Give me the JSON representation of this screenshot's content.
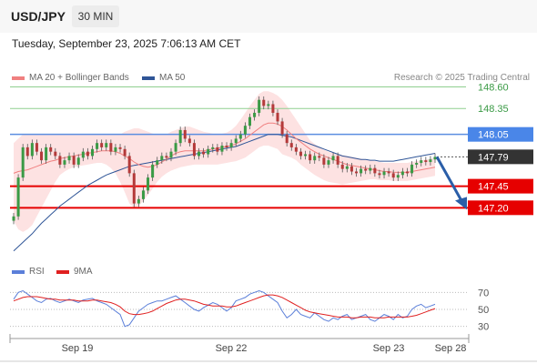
{
  "header": {
    "symbol": "USD/JPY",
    "timeframe": "30 MIN",
    "datetime": "Tuesday, September 23, 2025 7:06:13 AM CET"
  },
  "legend": {
    "ma20_label": "MA 20 + Bollinger Bands",
    "ma20_color": "#f08080",
    "ma50_label": "MA 50",
    "ma50_color": "#2f5597",
    "credit": "Research © 2025 Trading Central"
  },
  "rsi_legend": {
    "rsi_label": "RSI",
    "rsi_color": "#5b7fd9",
    "ma9_label": "9MA",
    "ma9_color": "#e02020"
  },
  "chart_data": [
    {
      "type": "candlestick",
      "ylim": [
        146.55,
        148.7
      ],
      "x_tick_labels": [
        "Sep 19",
        "Sep 22",
        "Sep 23",
        "Sep 28"
      ],
      "close": [
        147.1,
        147.55,
        147.9,
        147.8,
        147.95,
        147.85,
        147.75,
        147.9,
        147.85,
        147.8,
        147.7,
        147.75,
        147.8,
        147.7,
        147.78,
        147.85,
        147.8,
        147.88,
        147.95,
        147.9,
        147.95,
        147.85,
        147.9,
        147.88,
        147.8,
        147.6,
        147.25,
        147.3,
        147.4,
        147.55,
        147.7,
        147.75,
        147.8,
        147.78,
        147.85,
        147.95,
        148.1,
        148.0,
        147.95,
        147.8,
        147.85,
        147.82,
        147.88,
        147.9,
        147.85,
        147.92,
        147.9,
        147.95,
        148.0,
        148.05,
        148.15,
        148.25,
        148.3,
        148.45,
        148.38,
        148.4,
        148.3,
        148.2,
        148.05,
        147.95,
        147.9,
        147.85,
        147.8,
        147.82,
        147.75,
        147.8,
        147.78,
        147.7,
        147.75,
        147.8,
        147.7,
        147.65,
        147.68,
        147.62,
        147.6,
        147.65,
        147.63,
        147.66,
        147.6,
        147.58,
        147.62,
        147.6,
        147.55,
        147.58,
        147.62,
        147.6,
        147.7,
        147.72,
        147.75,
        147.73,
        147.76,
        147.79
      ],
      "ma20": [
        147.6,
        147.62,
        147.63,
        147.64,
        147.66,
        147.68,
        147.7,
        147.72,
        147.74,
        147.75,
        147.77,
        147.78,
        147.79,
        147.8,
        147.81,
        147.82,
        147.83,
        147.84,
        147.85,
        147.86,
        147.86,
        147.86,
        147.85,
        147.83,
        147.8,
        147.77,
        147.73,
        147.7,
        147.68,
        147.67,
        147.68,
        147.7,
        147.73,
        147.76,
        147.8,
        147.83,
        147.85,
        147.86,
        147.86,
        147.86,
        147.86,
        147.86,
        147.87,
        147.88,
        147.89,
        147.9,
        147.91,
        147.92,
        147.94,
        147.97,
        148.0,
        148.04,
        148.08,
        148.12,
        148.16,
        148.18,
        148.18,
        148.17,
        148.14,
        148.1,
        148.05,
        148.0,
        147.96,
        147.92,
        147.88,
        147.85,
        147.82,
        147.8,
        147.78,
        147.76,
        147.74,
        147.72,
        147.7,
        147.69,
        147.68,
        147.67,
        147.66,
        147.65,
        147.64,
        147.63,
        147.62,
        147.62,
        147.61,
        147.61,
        147.61,
        147.61,
        147.62,
        147.63,
        147.64,
        147.65,
        147.66,
        147.67
      ],
      "bb_upper": [
        147.95,
        148.0,
        148.05,
        148.05,
        148.05,
        148.05,
        148.05,
        148.05,
        148.05,
        148.05,
        148.05,
        148.05,
        148.05,
        148.05,
        148.05,
        148.05,
        148.05,
        148.05,
        148.05,
        148.05,
        148.05,
        148.05,
        148.05,
        148.05,
        148.08,
        148.1,
        148.12,
        148.12,
        148.1,
        148.08,
        148.06,
        148.05,
        148.05,
        148.05,
        148.08,
        148.1,
        148.12,
        148.14,
        148.14,
        148.12,
        148.1,
        148.08,
        148.07,
        148.06,
        148.06,
        148.06,
        148.07,
        148.1,
        148.15,
        148.22,
        148.3,
        148.38,
        148.45,
        148.52,
        148.55,
        148.55,
        148.53,
        148.5,
        148.45,
        148.38,
        148.3,
        148.22,
        148.14,
        148.06,
        147.98,
        147.94,
        147.9,
        147.87,
        147.85,
        147.83,
        147.82,
        147.81,
        147.8,
        147.79,
        147.78,
        147.77,
        147.76,
        147.75,
        147.74,
        147.73,
        147.72,
        147.72,
        147.72,
        147.72,
        147.72,
        147.72,
        147.73,
        147.74,
        147.75,
        147.76,
        147.77,
        147.78
      ],
      "bb_lower": [
        147.05,
        146.95,
        146.92,
        146.95,
        147.0,
        147.1,
        147.2,
        147.3,
        147.4,
        147.5,
        147.58,
        147.62,
        147.65,
        147.67,
        147.68,
        147.69,
        147.7,
        147.71,
        147.72,
        147.72,
        147.7,
        147.66,
        147.6,
        147.5,
        147.38,
        147.25,
        147.2,
        147.22,
        147.28,
        147.35,
        147.42,
        147.5,
        147.56,
        147.6,
        147.63,
        147.65,
        147.67,
        147.68,
        147.69,
        147.7,
        147.7,
        147.7,
        147.7,
        147.7,
        147.7,
        147.71,
        147.72,
        147.73,
        147.74,
        147.76,
        147.78,
        147.82,
        147.86,
        147.9,
        147.92,
        147.92,
        147.9,
        147.88,
        147.82,
        147.8,
        147.78,
        147.75,
        147.7,
        147.66,
        147.62,
        147.58,
        147.55,
        147.52,
        147.5,
        147.49,
        147.48,
        147.47,
        147.48,
        147.49,
        147.5,
        147.51,
        147.52,
        147.53,
        147.53,
        147.52,
        147.52,
        147.52,
        147.51,
        147.51,
        147.51,
        147.51,
        147.52,
        147.53,
        147.54,
        147.55,
        147.56,
        147.57
      ],
      "ma50": [
        146.7,
        146.75,
        146.8,
        146.85,
        146.9,
        146.96,
        147.02,
        147.07,
        147.12,
        147.17,
        147.22,
        147.26,
        147.3,
        147.34,
        147.38,
        147.42,
        147.46,
        147.49,
        147.52,
        147.55,
        147.58,
        147.6,
        147.62,
        147.64,
        147.66,
        147.68,
        147.69,
        147.7,
        147.71,
        147.72,
        147.73,
        147.74,
        147.75,
        147.76,
        147.77,
        147.78,
        147.79,
        147.8,
        147.81,
        147.82,
        147.83,
        147.84,
        147.85,
        147.86,
        147.87,
        147.88,
        147.89,
        147.9,
        147.91,
        147.93,
        147.95,
        147.97,
        147.99,
        148.01,
        148.03,
        148.05,
        148.05,
        148.05,
        148.04,
        148.03,
        148.02,
        148.0,
        147.98,
        147.96,
        147.94,
        147.92,
        147.9,
        147.88,
        147.86,
        147.84,
        147.82,
        147.8,
        147.79,
        147.78,
        147.77,
        147.76,
        147.76,
        147.75,
        147.75,
        147.74,
        147.74,
        147.74,
        147.74,
        147.75,
        147.76,
        147.77,
        147.78,
        147.79,
        147.8,
        147.81,
        147.82,
        147.83
      ],
      "levels": [
        {
          "value": 148.6,
          "label": "148.60",
          "style": "thin-green"
        },
        {
          "value": 148.35,
          "label": "148.35",
          "style": "thin-green"
        },
        {
          "value": 148.05,
          "label": "148.05",
          "style": "blue-box"
        },
        {
          "value": 147.79,
          "label": "147.79",
          "style": "current-price"
        },
        {
          "value": 147.45,
          "label": "147.45",
          "style": "red-box"
        },
        {
          "value": 147.2,
          "label": "147.20",
          "style": "red-box"
        }
      ],
      "colors": {
        "up": "#3a9a45",
        "down": "#b43a3a",
        "band_fill": "#fde2e2",
        "ma20_line": "#f08080",
        "ma50_line": "#2f5597",
        "green_level": "#8fcf8f",
        "blue_level": "#5b8ee0",
        "red_level": "#e60000",
        "current": "#333333",
        "projection_arrow": "#2a5ea8"
      }
    },
    {
      "type": "line",
      "ylim": [
        20,
        80
      ],
      "y_ticks": [
        "70",
        "50",
        "30"
      ],
      "series": [
        {
          "name": "RSI",
          "values": [
            62,
            70,
            72,
            68,
            64,
            60,
            58,
            62,
            63,
            60,
            58,
            60,
            62,
            60,
            58,
            61,
            62,
            63,
            60,
            58,
            56,
            52,
            48,
            44,
            30,
            32,
            40,
            48,
            52,
            56,
            58,
            60,
            60,
            62,
            64,
            66,
            62,
            58,
            54,
            50,
            48,
            52,
            55,
            58,
            56,
            52,
            48,
            52,
            60,
            62,
            64,
            68,
            70,
            72,
            70,
            66,
            62,
            58,
            48,
            40,
            44,
            50,
            44,
            42,
            40,
            46,
            42,
            38,
            36,
            40,
            38,
            42,
            44,
            38,
            40,
            42,
            44,
            38,
            36,
            40,
            44,
            42,
            38,
            44,
            40,
            42,
            50,
            54,
            56,
            52,
            54,
            56
          ]
        },
        {
          "name": "9MA",
          "values": [
            60,
            62,
            64,
            65,
            65,
            65,
            64,
            63,
            62,
            62,
            61,
            61,
            61,
            61,
            60,
            60,
            60,
            61,
            61,
            60,
            59,
            58,
            56,
            53,
            48,
            45,
            44,
            44,
            45,
            46,
            48,
            51,
            54,
            57,
            59,
            61,
            62,
            62,
            61,
            60,
            58,
            56,
            55,
            54,
            54,
            54,
            53,
            53,
            54,
            56,
            58,
            60,
            62,
            64,
            66,
            67,
            67,
            66,
            64,
            61,
            58,
            55,
            52,
            49,
            47,
            46,
            45,
            44,
            43,
            42,
            41,
            41,
            41,
            40,
            40,
            41,
            41,
            41,
            40,
            40,
            40,
            41,
            41,
            41,
            41,
            41,
            42,
            43,
            45,
            47,
            49,
            51
          ]
        }
      ]
    }
  ]
}
